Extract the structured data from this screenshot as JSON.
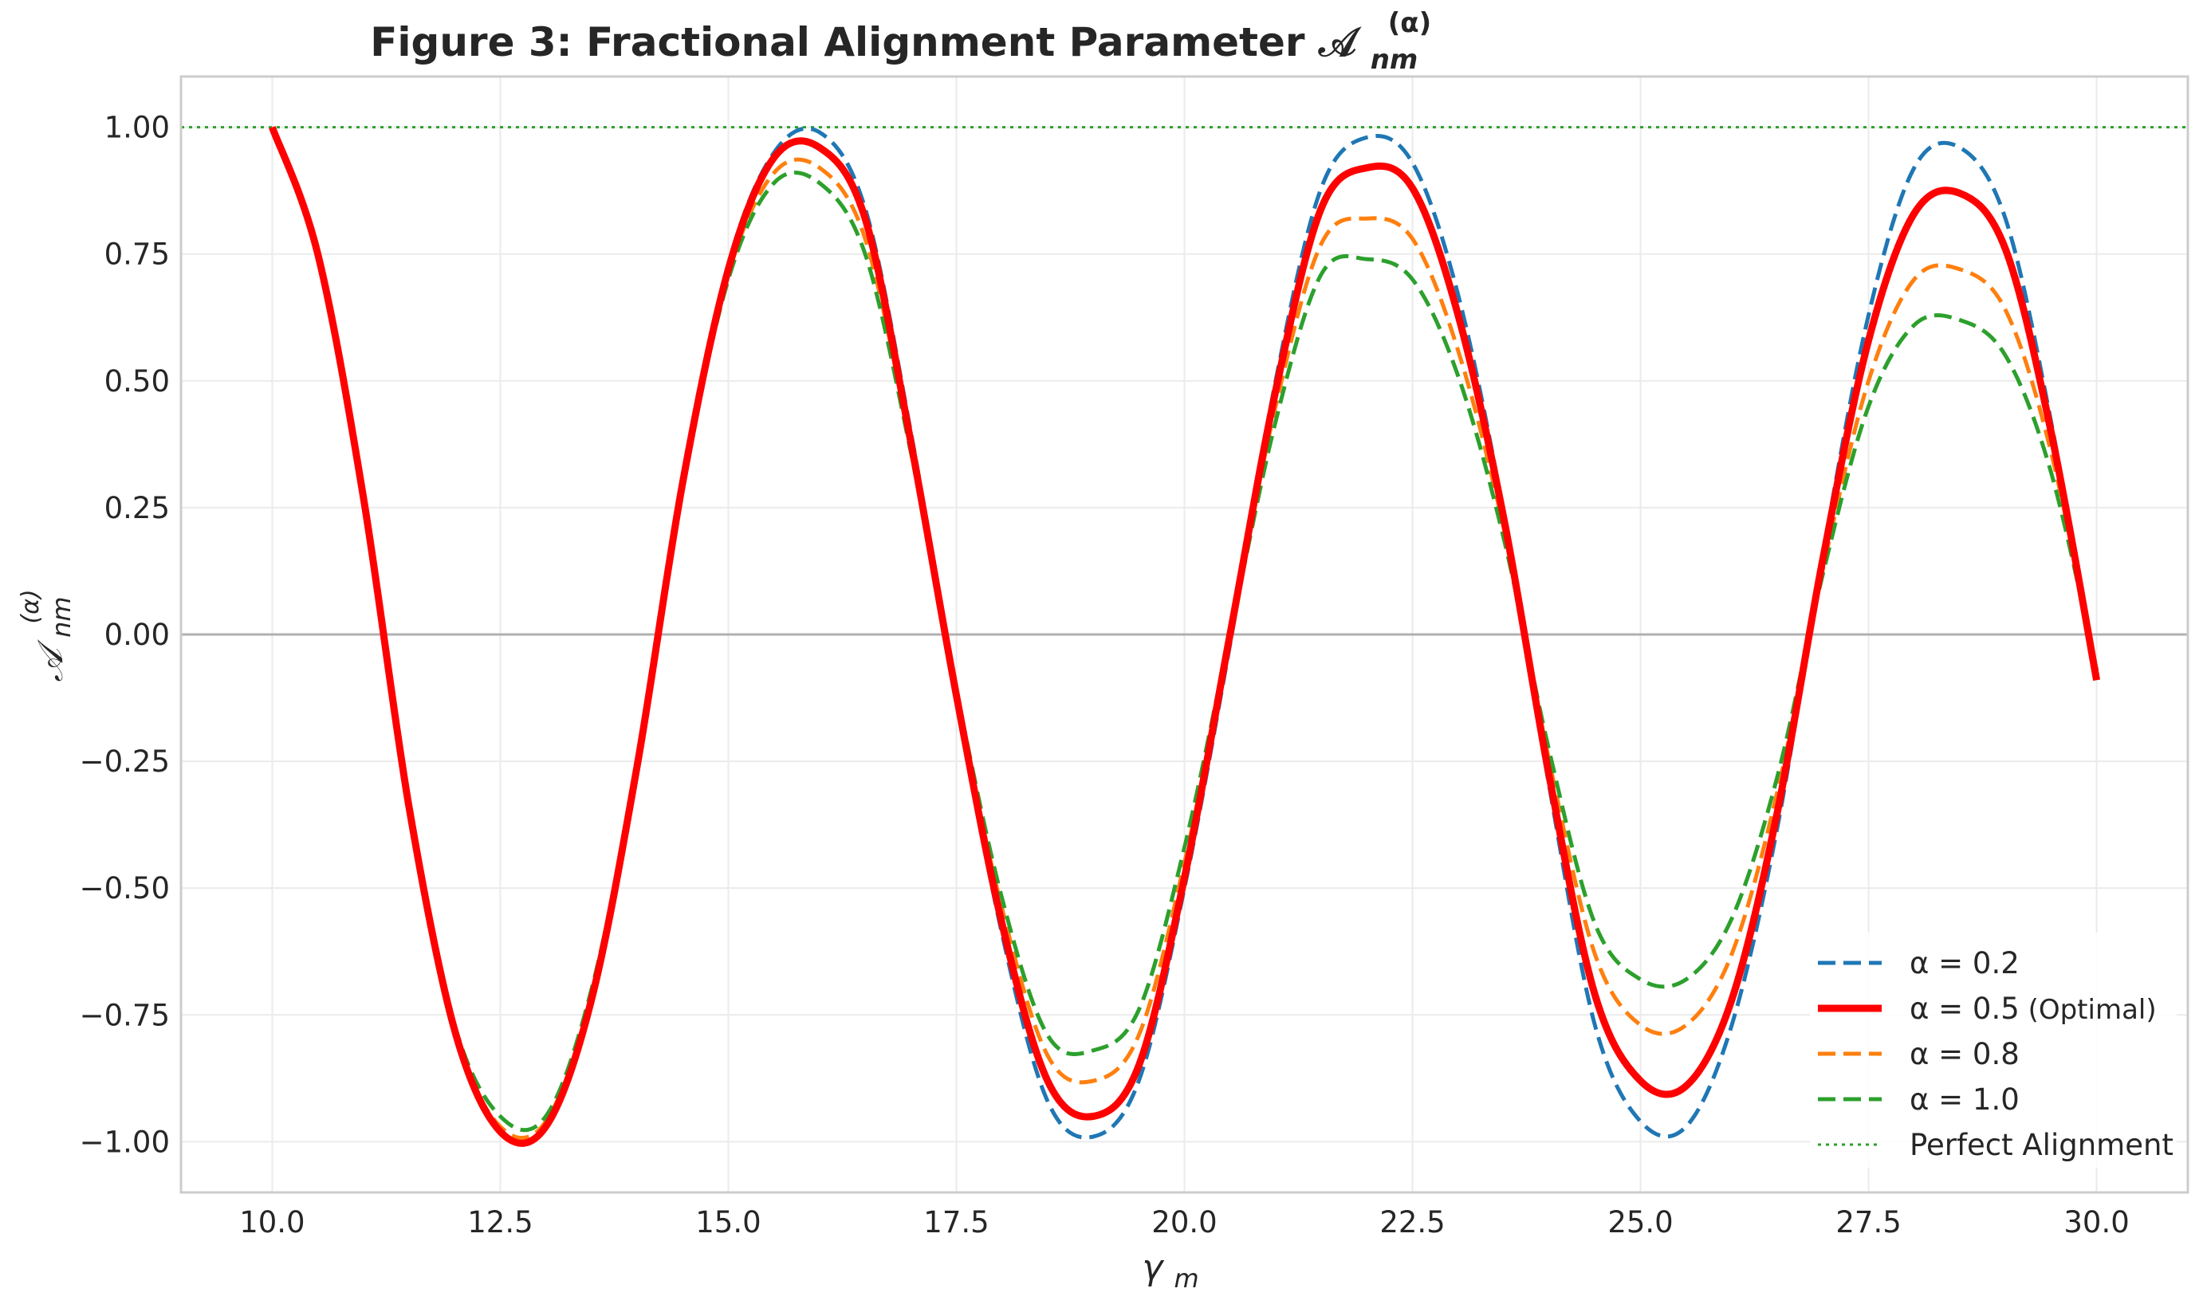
{
  "chart_data": {
    "type": "line",
    "title": "Figure 3: Fractional Alignment Parameter 𝒜",
    "title_math": {
      "base": "𝒜",
      "sub": "nm",
      "sup": "(α)"
    },
    "xlabel": "γ",
    "xlabel_sub": "m",
    "ylabel": "𝒜",
    "ylabel_sub": "nm",
    "ylabel_sup": "(α)",
    "xlim": [
      9.0,
      31.0
    ],
    "ylim": [
      -1.1,
      1.1
    ],
    "x_ticks": [
      10.0,
      12.5,
      15.0,
      17.5,
      20.0,
      22.5,
      25.0,
      27.5,
      30.0
    ],
    "x_tick_labels": [
      "10.0",
      "12.5",
      "15.0",
      "17.5",
      "20.0",
      "22.5",
      "25.0",
      "27.5",
      "30.0"
    ],
    "y_ticks": [
      1.0,
      0.75,
      0.5,
      0.25,
      0.0,
      -0.25,
      -0.5,
      -0.75,
      -1.0
    ],
    "y_tick_labels": [
      "1.00",
      "0.75",
      "0.50",
      "0.25",
      "0.00",
      "−0.25",
      "−0.50",
      "−0.75",
      "−1.00"
    ],
    "grid": true,
    "legend_position": "lower-right",
    "x": [
      10.0,
      10.5,
      11.0,
      11.5,
      12.0,
      12.5,
      13.0,
      13.5,
      14.0,
      14.5,
      15.0,
      15.5,
      16.0,
      16.5,
      17.0,
      17.5,
      18.0,
      18.5,
      19.0,
      19.5,
      20.0,
      20.5,
      21.0,
      21.5,
      22.0,
      22.5,
      23.0,
      23.5,
      24.0,
      24.5,
      25.0,
      25.5,
      26.0,
      26.5,
      27.0,
      27.5,
      28.0,
      28.5,
      29.0,
      29.5,
      30.0
    ],
    "series": [
      {
        "name": "α = 0.2",
        "label_suffix": "",
        "color": "#1f77b4",
        "dash": "dashed",
        "width": 5,
        "values": [
          1.0,
          0.75,
          0.27,
          -0.34,
          -0.78,
          -0.98,
          -0.97,
          -0.72,
          -0.26,
          0.3,
          0.73,
          0.95,
          0.99,
          0.84,
          0.4,
          -0.12,
          -0.59,
          -0.92,
          -0.99,
          -0.88,
          -0.5,
          -0.02,
          0.5,
          0.88,
          0.98,
          0.93,
          0.67,
          0.24,
          -0.3,
          -0.77,
          -0.96,
          -0.97,
          -0.77,
          -0.38,
          0.16,
          0.63,
          0.92,
          0.96,
          0.82,
          0.42,
          -0.1
        ]
      },
      {
        "name": "α = 0.5",
        "label_suffix": "(Optimal)",
        "color": "#ff0000",
        "dash": "solid",
        "width": 9,
        "values": [
          1.0,
          0.75,
          0.27,
          -0.34,
          -0.78,
          -0.98,
          -0.97,
          -0.72,
          -0.26,
          0.3,
          0.72,
          0.94,
          0.96,
          0.82,
          0.38,
          -0.12,
          -0.57,
          -0.88,
          -0.95,
          -0.85,
          -0.48,
          0.0,
          0.48,
          0.84,
          0.92,
          0.88,
          0.63,
          0.23,
          -0.28,
          -0.71,
          -0.88,
          -0.89,
          -0.72,
          -0.35,
          0.15,
          0.58,
          0.83,
          0.87,
          0.76,
          0.4,
          -0.09
        ]
      },
      {
        "name": "α = 0.8",
        "label_suffix": "",
        "color": "#ff7f0e",
        "dash": "dashed",
        "width": 5,
        "values": [
          1.0,
          0.75,
          0.27,
          -0.34,
          -0.78,
          -0.97,
          -0.96,
          -0.71,
          -0.26,
          0.3,
          0.71,
          0.91,
          0.92,
          0.78,
          0.37,
          -0.12,
          -0.54,
          -0.83,
          -0.88,
          -0.79,
          -0.45,
          0.0,
          0.45,
          0.77,
          0.82,
          0.78,
          0.56,
          0.21,
          -0.25,
          -0.63,
          -0.77,
          -0.77,
          -0.63,
          -0.31,
          0.13,
          0.5,
          0.7,
          0.72,
          0.64,
          0.36,
          -0.08
        ]
      },
      {
        "name": "α = 1.0",
        "label_suffix": "",
        "color": "#2ca02c",
        "dash": "dashed",
        "width": 5,
        "values": [
          1.0,
          0.75,
          0.27,
          -0.34,
          -0.77,
          -0.95,
          -0.95,
          -0.7,
          -0.26,
          0.29,
          0.7,
          0.89,
          0.89,
          0.75,
          0.36,
          -0.11,
          -0.52,
          -0.79,
          -0.82,
          -0.74,
          -0.42,
          0.0,
          0.42,
          0.71,
          0.74,
          0.7,
          0.51,
          0.19,
          -0.23,
          -0.57,
          -0.68,
          -0.68,
          -0.56,
          -0.28,
          0.12,
          0.45,
          0.61,
          0.62,
          0.55,
          0.32,
          -0.07
        ]
      }
    ],
    "reference_lines": [
      {
        "name": "Perfect Alignment",
        "y": 1.0,
        "color": "#2ca02c",
        "dash": "dotted"
      },
      {
        "name": "",
        "y": 0.0,
        "color": "#b0b0b0",
        "dash": "solid"
      }
    ]
  }
}
